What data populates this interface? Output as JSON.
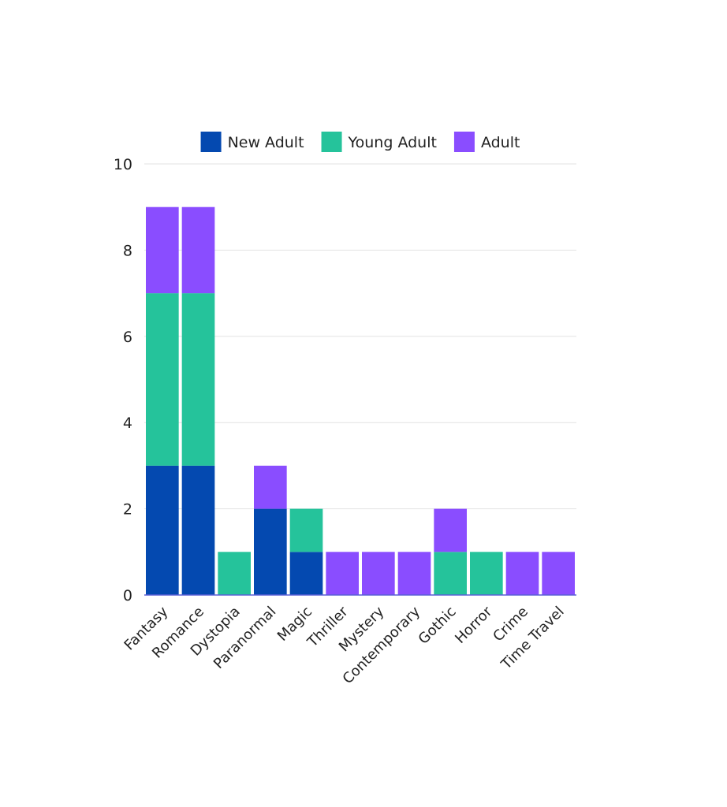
{
  "chart_data": {
    "type": "bar",
    "stacked": true,
    "categories": [
      "Fantasy",
      "Romance",
      "Dystopia",
      "Paranormal",
      "Magic",
      "Thriller",
      "Mystery",
      "Contemporary",
      "Gothic",
      "Horror",
      "Crime",
      "Time Travel"
    ],
    "series": [
      {
        "name": "New Adult",
        "color": "#0449b0",
        "values": [
          3,
          3,
          0,
          2,
          1,
          0,
          0,
          0,
          0,
          0,
          0,
          0
        ]
      },
      {
        "name": "Young Adult",
        "color": "#25c39b",
        "values": [
          4,
          4,
          1,
          0,
          1,
          0,
          0,
          0,
          1,
          1,
          0,
          0
        ]
      },
      {
        "name": "Adult",
        "color": "#8a4dff",
        "values": [
          2,
          2,
          0,
          1,
          0,
          1,
          1,
          1,
          1,
          0,
          1,
          1
        ]
      }
    ],
    "ylim": [
      0,
      10
    ],
    "yticks": [
      0,
      2,
      4,
      6,
      8,
      10
    ],
    "grid": true,
    "legend_position": "top"
  }
}
